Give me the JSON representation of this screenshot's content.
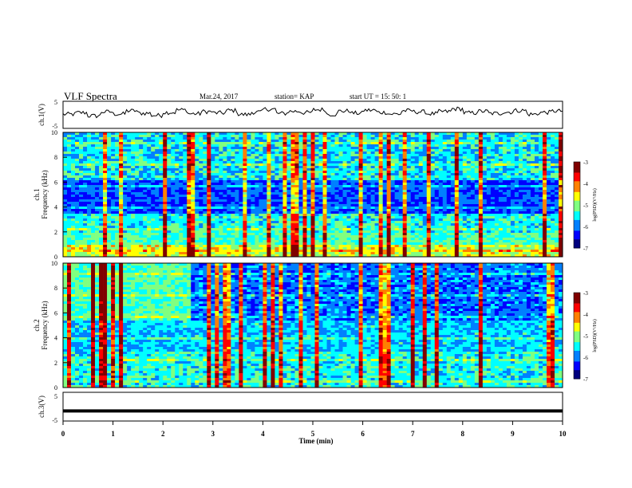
{
  "header": {
    "title": "VLF Spectra",
    "date": "Mar.24, 2017",
    "station": "station= KAP",
    "start_time": "start  UT =   15: 50: 1"
  },
  "chart_data": [
    {
      "type": "line",
      "panel": "ch1-waveform",
      "ylabel": "ch.1(V)",
      "ylim": [
        -5,
        5
      ],
      "yticks": [
        "5",
        "-5"
      ],
      "xlim": [
        0,
        10
      ],
      "description_series": "noisy waveform fluctuating roughly between -1 and +2 V",
      "series": [
        {
          "values": [
            0.2,
            0.8,
            -0.4,
            1.1,
            0.3,
            1.5,
            0.6,
            -0.2,
            0.9,
            1.8,
            0.4,
            1.2,
            0.7,
            1.6,
            0.1,
            1.0,
            2.1,
            0.5,
            1.3,
            0.8,
            1.9,
            0.2,
            1.4,
            0.6,
            1.7,
            0.9,
            0.3,
            1.5,
            1.1,
            0.4,
            1.2,
            2.2,
            0.7,
            1.3,
            0.5,
            1.0,
            1.6,
            0.2,
            0.9,
            1.4
          ]
        }
      ]
    },
    {
      "type": "heatmap",
      "panel": "ch1-spectrogram",
      "ylabel": "ch.1\nFrequency (kHz)",
      "ylabel_top": "ch.1",
      "ylabel_bottom": "Frequency (kHz)",
      "ylim": [
        0,
        10
      ],
      "yticks": [
        "0",
        "2",
        "4",
        "6",
        "8",
        "10"
      ],
      "xlim": [
        0,
        10
      ],
      "colorbar": {
        "label": "log(PSD)(V²/Hz)",
        "range": [
          -7,
          -3
        ],
        "ticks": [
          "-3",
          "-4",
          "-5",
          "-6",
          "-7"
        ]
      }
    },
    {
      "type": "heatmap",
      "panel": "ch2-spectrogram",
      "ylabel_top": "ch.2",
      "ylabel_bottom": "Frequency (kHz)",
      "ylim": [
        0,
        10
      ],
      "yticks": [
        "0",
        "2",
        "4",
        "6",
        "8",
        "10"
      ],
      "xlim": [
        0,
        10
      ],
      "colorbar": {
        "label": "log(PSD)(V²/Hz)",
        "range": [
          -7,
          -3
        ],
        "ticks": [
          "-3",
          "-4",
          "-5",
          "-6",
          "-7"
        ]
      }
    },
    {
      "type": "line",
      "panel": "ch3-waveform",
      "ylabel": "ch.3(V)",
      "ylim": [
        -5,
        5
      ],
      "yticks": [
        "5",
        "-5"
      ],
      "xlim": [
        0,
        10
      ],
      "series": [
        {
          "values": [
            -1.5,
            -1.5
          ]
        }
      ],
      "xlabel": "Time  (min)",
      "xticks": [
        "0",
        "1",
        "2",
        "3",
        "4",
        "5",
        "6",
        "7",
        "8",
        "9",
        "10"
      ]
    }
  ],
  "colors": {
    "axis": "#000000",
    "waveform": "#000000",
    "cmap": [
      "#00007f",
      "#0000ff",
      "#0080ff",
      "#00ffff",
      "#80ff80",
      "#ffff00",
      "#ff8000",
      "#ff0000",
      "#800000"
    ]
  }
}
